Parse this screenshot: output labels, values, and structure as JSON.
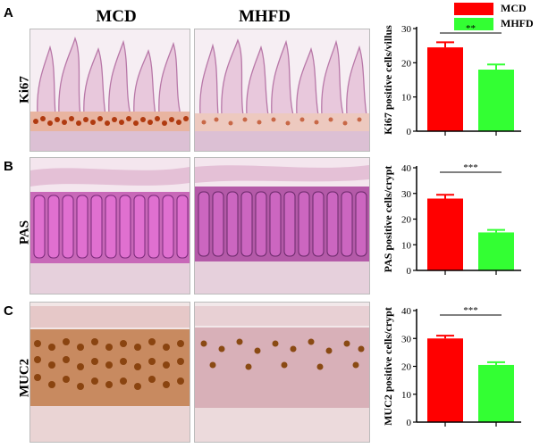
{
  "column_titles": [
    "MCD",
    "MHFD"
  ],
  "rows": [
    {
      "letter": "A",
      "stain": "Ki67"
    },
    {
      "letter": "B",
      "stain": "PAS"
    },
    {
      "letter": "C",
      "stain": "MUC2"
    }
  ],
  "legend": [
    {
      "name": "MCD",
      "color": "#ff0000"
    },
    {
      "name": "MHFD",
      "color": "#33ff33"
    }
  ],
  "chart_data": [
    {
      "type": "bar",
      "categories": [
        "MCD",
        "MHFD"
      ],
      "values": [
        24.5,
        18.0
      ],
      "errors": [
        1.5,
        1.5
      ],
      "colors": [
        "#ff0000",
        "#33ff33"
      ],
      "ylabel": "Ki67 positive cells/villus",
      "ylim": [
        0,
        30
      ],
      "yticks": [
        0,
        10,
        20,
        30
      ],
      "significance": "**"
    },
    {
      "type": "bar",
      "categories": [
        "MCD",
        "MHFD"
      ],
      "values": [
        28.0,
        14.8
      ],
      "errors": [
        1.5,
        1.0
      ],
      "colors": [
        "#ff0000",
        "#33ff33"
      ],
      "ylabel": "PAS positive cells/crypt",
      "ylim": [
        0,
        40
      ],
      "yticks": [
        0,
        10,
        20,
        30,
        40
      ],
      "significance": "***"
    },
    {
      "type": "bar",
      "categories": [
        "MCD",
        "MHFD"
      ],
      "values": [
        30.0,
        20.5
      ],
      "errors": [
        1.0,
        1.0
      ],
      "colors": [
        "#ff0000",
        "#33ff33"
      ],
      "ylabel": "MUC2 positive cells/crypt",
      "ylim": [
        0,
        40
      ],
      "yticks": [
        0,
        10,
        20,
        30,
        40
      ],
      "significance": "***"
    }
  ]
}
